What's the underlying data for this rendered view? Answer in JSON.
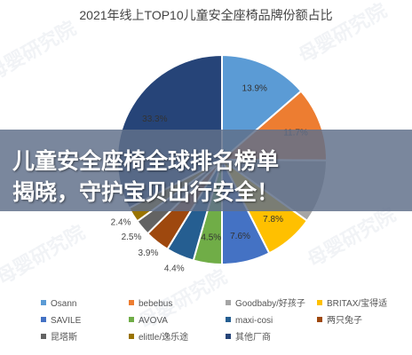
{
  "chart_data": {
    "type": "pie",
    "title": "2021年线上TOP10儿童安全座椅品牌份额占比",
    "slices": [
      {
        "name": "Osann",
        "value": 13.9,
        "label": "13.9%",
        "color": "#5b9bd5"
      },
      {
        "name": "bebebus",
        "value": 11.7,
        "label": "11.7%",
        "color": "#ed7d31"
      },
      {
        "name": "Goodbaby/好孩子",
        "value": 10.0,
        "label": "",
        "color": "#a5a5a5"
      },
      {
        "name": "BRITAX/宝得适",
        "value": 7.8,
        "label": "7.8%",
        "color": "#ffc000"
      },
      {
        "name": "SAVILE",
        "value": 7.6,
        "label": "7.6%",
        "color": "#4472c4"
      },
      {
        "name": "AVOVA",
        "value": 4.5,
        "label": "4.5%",
        "color": "#70ad47"
      },
      {
        "name": "maxi-cosi",
        "value": 4.4,
        "label": "4.4%",
        "color": "#255e91"
      },
      {
        "name": "两只兔子",
        "value": 3.9,
        "label": "3.9%",
        "color": "#9e480e"
      },
      {
        "name": "昆塔斯",
        "value": 2.5,
        "label": "2.5%",
        "color": "#636363"
      },
      {
        "name": "elittle/逸乐途",
        "value": 2.4,
        "label": "2.4%",
        "color": "#997300"
      },
      {
        "name": "其他厂商",
        "value": 33.3,
        "label": "33.3%",
        "color": "#264478"
      }
    ],
    "legend_position": "bottom"
  },
  "banner": {
    "line1": "儿童安全座椅全球排名榜单",
    "line2": "揭晓，守护宝贝出行安全！"
  },
  "watermark": {
    "text": "母婴研究院"
  }
}
